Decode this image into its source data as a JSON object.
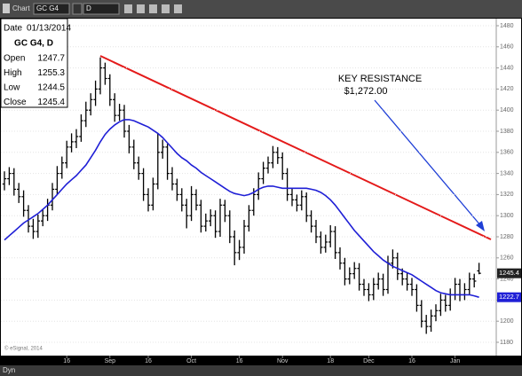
{
  "toolbar": {
    "title": "Chart",
    "symbol": "GC G4",
    "interval": "D"
  },
  "status": "Dyn",
  "chart_data": {
    "type": "ohlc",
    "categories": [
      null,
      null,
      null,
      null,
      null,
      null,
      null,
      null,
      null,
      null,
      null,
      null,
      null,
      "16",
      null,
      null,
      null,
      null,
      null,
      null,
      null,
      null,
      "Sep",
      null,
      null,
      null,
      null,
      null,
      null,
      null,
      "16",
      null,
      null,
      null,
      null,
      null,
      null,
      null,
      null,
      "Oct",
      null,
      null,
      null,
      null,
      null,
      null,
      null,
      null,
      null,
      "16",
      null,
      null,
      null,
      null,
      null,
      null,
      null,
      null,
      "Nov",
      null,
      null,
      null,
      null,
      null,
      null,
      null,
      null,
      null,
      "18",
      null,
      null,
      null,
      null,
      null,
      null,
      null,
      "Dec",
      null,
      null,
      null,
      null,
      null,
      null,
      null,
      null,
      "16",
      null,
      null,
      null,
      null,
      null,
      null,
      null,
      null,
      "Jan",
      null,
      null,
      null,
      null,
      null
    ],
    "open": [
      1330,
      1335,
      1340,
      1325,
      1318,
      1305,
      1290,
      1285,
      1295,
      1300,
      1310,
      1325,
      1340,
      1350,
      1365,
      1370,
      1375,
      1390,
      1400,
      1410,
      1420,
      1440,
      1430,
      1410,
      1395,
      1400,
      1380,
      1365,
      1350,
      1340,
      1320,
      1310,
      1330,
      1360,
      1365,
      1340,
      1330,
      1320,
      1310,
      1300,
      1320,
      1310,
      1290,
      1295,
      1300,
      1285,
      1310,
      1300,
      1280,
      1265,
      1270,
      1290,
      1305,
      1320,
      1335,
      1345,
      1350,
      1360,
      1355,
      1340,
      1320,
      1315,
      1310,
      1318,
      1300,
      1290,
      1280,
      1270,
      1275,
      1285,
      1265,
      1255,
      1240,
      1245,
      1250,
      1235,
      1230,
      1225,
      1235,
      1240,
      1230,
      1255,
      1260,
      1245,
      1240,
      1235,
      1230,
      1215,
      1200,
      1195,
      1205,
      1210,
      1220,
      1215,
      1225,
      1235,
      1225,
      1230,
      1240,
      1247.7
    ],
    "high": [
      1342,
      1346,
      1345,
      1331,
      1324,
      1310,
      1297,
      1301,
      1306,
      1316,
      1331,
      1347,
      1356,
      1371,
      1378,
      1382,
      1396,
      1408,
      1416,
      1428,
      1450,
      1445,
      1434,
      1416,
      1406,
      1405,
      1386,
      1372,
      1356,
      1345,
      1326,
      1336,
      1378,
      1372,
      1368,
      1346,
      1335,
      1326,
      1316,
      1328,
      1325,
      1315,
      1302,
      1306,
      1305,
      1316,
      1315,
      1305,
      1286,
      1277,
      1296,
      1310,
      1326,
      1341,
      1351,
      1356,
      1366,
      1365,
      1360,
      1345,
      1326,
      1320,
      1324,
      1322,
      1305,
      1296,
      1285,
      1282,
      1291,
      1290,
      1270,
      1260,
      1251,
      1256,
      1255,
      1240,
      1236,
      1241,
      1246,
      1245,
      1262,
      1268,
      1265,
      1250,
      1246,
      1241,
      1235,
      1220,
      1206,
      1211,
      1216,
      1226,
      1225,
      1231,
      1241,
      1240,
      1236,
      1246,
      1245,
      1255.3
    ],
    "low": [
      1324,
      1329,
      1319,
      1312,
      1299,
      1284,
      1278,
      1279,
      1290,
      1295,
      1305,
      1320,
      1335,
      1345,
      1360,
      1364,
      1370,
      1384,
      1395,
      1404,
      1415,
      1424,
      1404,
      1389,
      1390,
      1374,
      1359,
      1344,
      1334,
      1314,
      1304,
      1305,
      1325,
      1354,
      1334,
      1324,
      1314,
      1304,
      1288,
      1295,
      1305,
      1284,
      1285,
      1290,
      1279,
      1280,
      1294,
      1274,
      1253,
      1258,
      1264,
      1285,
      1300,
      1315,
      1330,
      1340,
      1345,
      1349,
      1334,
      1314,
      1309,
      1304,
      1305,
      1294,
      1284,
      1274,
      1264,
      1265,
      1270,
      1259,
      1249,
      1234,
      1235,
      1240,
      1229,
      1224,
      1219,
      1220,
      1230,
      1224,
      1226,
      1250,
      1239,
      1234,
      1229,
      1224,
      1209,
      1194,
      1188,
      1190,
      1200,
      1205,
      1209,
      1210,
      1220,
      1219,
      1220,
      1225,
      1232,
      1244.5
    ],
    "close": [
      1335,
      1340,
      1325,
      1318,
      1305,
      1290,
      1285,
      1295,
      1300,
      1310,
      1325,
      1340,
      1350,
      1365,
      1370,
      1375,
      1390,
      1400,
      1410,
      1420,
      1440,
      1430,
      1410,
      1395,
      1400,
      1380,
      1365,
      1350,
      1340,
      1320,
      1310,
      1330,
      1360,
      1365,
      1340,
      1330,
      1320,
      1310,
      1300,
      1320,
      1310,
      1290,
      1295,
      1300,
      1285,
      1310,
      1300,
      1280,
      1265,
      1270,
      1290,
      1305,
      1320,
      1335,
      1345,
      1350,
      1360,
      1355,
      1340,
      1320,
      1315,
      1310,
      1318,
      1300,
      1290,
      1280,
      1270,
      1275,
      1285,
      1265,
      1255,
      1240,
      1245,
      1250,
      1235,
      1230,
      1225,
      1235,
      1240,
      1230,
      1255,
      1260,
      1245,
      1240,
      1235,
      1230,
      1215,
      1200,
      1195,
      1205,
      1210,
      1220,
      1215,
      1225,
      1235,
      1225,
      1230,
      1240,
      1238,
      1245.4
    ],
    "bar_color": "#000000",
    "moving_average": {
      "color": "#1f1fd6",
      "values": [
        1277,
        1281,
        1285,
        1289,
        1293,
        1296,
        1299,
        1302,
        1306,
        1310,
        1315,
        1320,
        1325,
        1330,
        1334,
        1338,
        1343,
        1348,
        1355,
        1362,
        1370,
        1377,
        1382,
        1386,
        1389,
        1391,
        1391,
        1390,
        1388,
        1386,
        1384,
        1381,
        1378,
        1374,
        1369,
        1364,
        1359,
        1355,
        1352,
        1348,
        1345,
        1341,
        1338,
        1335,
        1332,
        1329,
        1326,
        1323,
        1321,
        1320,
        1319,
        1320,
        1322,
        1325,
        1327,
        1328,
        1328,
        1327,
        1326,
        1326,
        1326,
        1326,
        1326,
        1326,
        1325,
        1324,
        1322,
        1319,
        1315,
        1310,
        1304,
        1298,
        1292,
        1286,
        1281,
        1276,
        1271,
        1266,
        1262,
        1258,
        1255,
        1252,
        1250,
        1248,
        1246,
        1244,
        1241,
        1238,
        1235,
        1232,
        1229,
        1227,
        1226,
        1225,
        1225,
        1225,
        1225,
        1225,
        1224,
        1222.7
      ]
    },
    "ylim": [
      1180,
      1480
    ],
    "yticks": [
      1180,
      1200,
      1220,
      1240,
      1260,
      1280,
      1300,
      1320,
      1340,
      1360,
      1380,
      1400,
      1420,
      1440,
      1460,
      1480
    ],
    "grid": true,
    "price_tags": [
      {
        "value": 1245.4,
        "color": "#222222"
      },
      {
        "value": 1222.7,
        "color": "#1f1fd6"
      }
    ],
    "annotations": [
      "KEY RESISTANCE",
      "$1,272.00"
    ],
    "info_panel": {
      "date_label": "Date",
      "date": "01/13/2014",
      "symbol": "GC G4, D",
      "rows": [
        [
          "Open",
          1247.7
        ],
        [
          "High",
          1255.3
        ],
        [
          "Low",
          1244.5
        ],
        [
          "Close",
          1245.4
        ]
      ]
    },
    "footer": "© eSignal, 2014"
  }
}
